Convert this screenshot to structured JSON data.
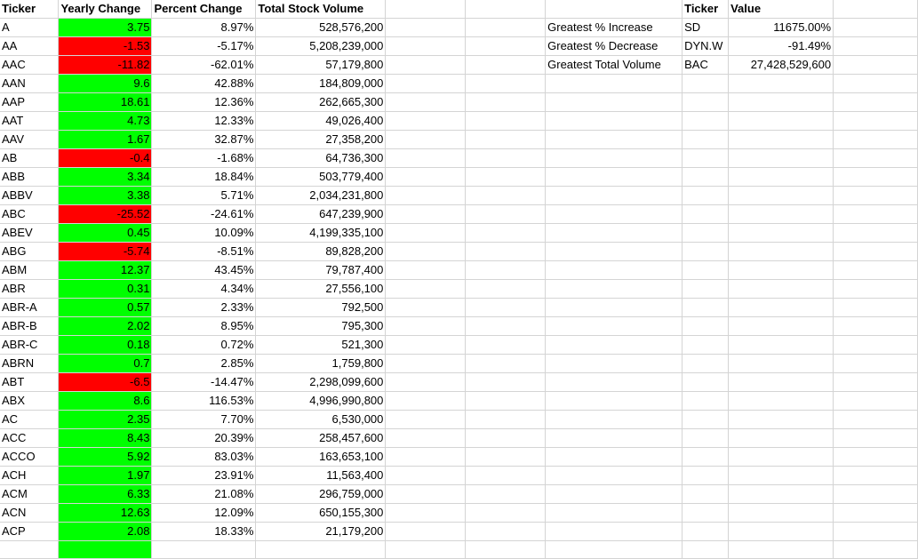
{
  "headers": {
    "ticker": "Ticker",
    "yearly_change": "Yearly Change",
    "percent_change": "Percent Change",
    "total_volume": "Total Stock Volume",
    "summary_ticker": "Ticker",
    "summary_value": "Value"
  },
  "colors": {
    "positive": "#00ff00",
    "negative": "#ff0000"
  },
  "rows": [
    {
      "ticker": "A",
      "change": "3.75",
      "pct": "8.97%",
      "volume": "528,576,200",
      "sign": "pos"
    },
    {
      "ticker": "AA",
      "change": "-1.53",
      "pct": "-5.17%",
      "volume": "5,208,239,000",
      "sign": "neg"
    },
    {
      "ticker": "AAC",
      "change": "-11.82",
      "pct": "-62.01%",
      "volume": "57,179,800",
      "sign": "neg"
    },
    {
      "ticker": "AAN",
      "change": "9.6",
      "pct": "42.88%",
      "volume": "184,809,000",
      "sign": "pos"
    },
    {
      "ticker": "AAP",
      "change": "18.61",
      "pct": "12.36%",
      "volume": "262,665,300",
      "sign": "pos"
    },
    {
      "ticker": "AAT",
      "change": "4.73",
      "pct": "12.33%",
      "volume": "49,026,400",
      "sign": "pos"
    },
    {
      "ticker": "AAV",
      "change": "1.67",
      "pct": "32.87%",
      "volume": "27,358,200",
      "sign": "pos"
    },
    {
      "ticker": "AB",
      "change": "-0.4",
      "pct": "-1.68%",
      "volume": "64,736,300",
      "sign": "neg"
    },
    {
      "ticker": "ABB",
      "change": "3.34",
      "pct": "18.84%",
      "volume": "503,779,400",
      "sign": "pos"
    },
    {
      "ticker": "ABBV",
      "change": "3.38",
      "pct": "5.71%",
      "volume": "2,034,231,800",
      "sign": "pos"
    },
    {
      "ticker": "ABC",
      "change": "-25.52",
      "pct": "-24.61%",
      "volume": "647,239,900",
      "sign": "neg"
    },
    {
      "ticker": "ABEV",
      "change": "0.45",
      "pct": "10.09%",
      "volume": "4,199,335,100",
      "sign": "pos"
    },
    {
      "ticker": "ABG",
      "change": "-5.74",
      "pct": "-8.51%",
      "volume": "89,828,200",
      "sign": "neg"
    },
    {
      "ticker": "ABM",
      "change": "12.37",
      "pct": "43.45%",
      "volume": "79,787,400",
      "sign": "pos"
    },
    {
      "ticker": "ABR",
      "change": "0.31",
      "pct": "4.34%",
      "volume": "27,556,100",
      "sign": "pos"
    },
    {
      "ticker": "ABR-A",
      "change": "0.57",
      "pct": "2.33%",
      "volume": "792,500",
      "sign": "pos"
    },
    {
      "ticker": "ABR-B",
      "change": "2.02",
      "pct": "8.95%",
      "volume": "795,300",
      "sign": "pos"
    },
    {
      "ticker": "ABR-C",
      "change": "0.18",
      "pct": "0.72%",
      "volume": "521,300",
      "sign": "pos"
    },
    {
      "ticker": "ABRN",
      "change": "0.7",
      "pct": "2.85%",
      "volume": "1,759,800",
      "sign": "pos"
    },
    {
      "ticker": "ABT",
      "change": "-6.5",
      "pct": "-14.47%",
      "volume": "2,298,099,600",
      "sign": "neg"
    },
    {
      "ticker": "ABX",
      "change": "8.6",
      "pct": "116.53%",
      "volume": "4,996,990,800",
      "sign": "pos"
    },
    {
      "ticker": "AC",
      "change": "2.35",
      "pct": "7.70%",
      "volume": "6,530,000",
      "sign": "pos"
    },
    {
      "ticker": "ACC",
      "change": "8.43",
      "pct": "20.39%",
      "volume": "258,457,600",
      "sign": "pos"
    },
    {
      "ticker": "ACCO",
      "change": "5.92",
      "pct": "83.03%",
      "volume": "163,653,100",
      "sign": "pos"
    },
    {
      "ticker": "ACH",
      "change": "1.97",
      "pct": "23.91%",
      "volume": "11,563,400",
      "sign": "pos"
    },
    {
      "ticker": "ACM",
      "change": "6.33",
      "pct": "21.08%",
      "volume": "296,759,000",
      "sign": "pos"
    },
    {
      "ticker": "ACN",
      "change": "12.63",
      "pct": "12.09%",
      "volume": "650,155,300",
      "sign": "pos"
    },
    {
      "ticker": "ACP",
      "change": "2.08",
      "pct": "18.33%",
      "volume": "21,179,200",
      "sign": "pos"
    }
  ],
  "summary": [
    {
      "label": "Greatest % Increase",
      "ticker": "SD",
      "value": "11675.00%"
    },
    {
      "label": "Greatest % Decrease",
      "ticker": "DYN.W",
      "value": "-91.49%"
    },
    {
      "label": "Greatest Total Volume",
      "ticker": "BAC",
      "value": "27,428,529,600"
    }
  ]
}
